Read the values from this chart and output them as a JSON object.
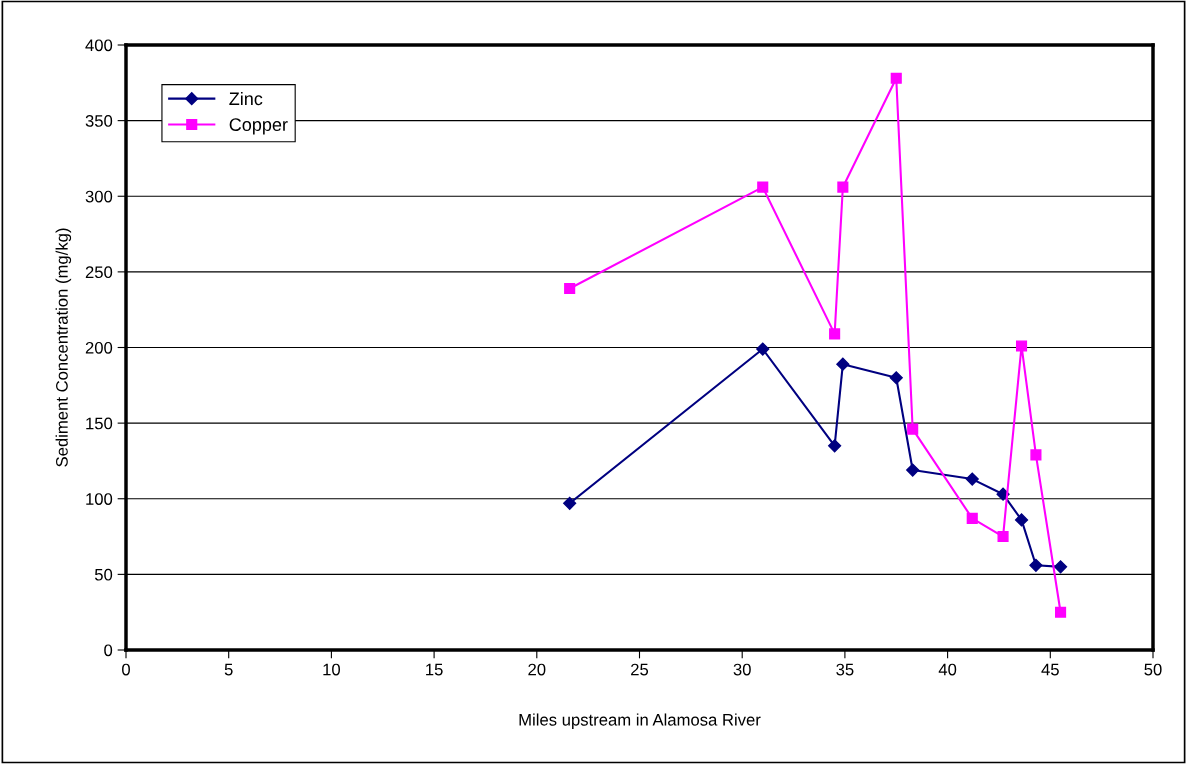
{
  "chart_data": {
    "type": "line",
    "xlabel": "Miles upstream in Alamosa River",
    "ylabel": "Sediment Concentration (mg/kg)",
    "xlim": [
      0,
      50
    ],
    "xticks": [
      0,
      5,
      10,
      15,
      20,
      25,
      30,
      35,
      40,
      45,
      50
    ],
    "ylim": [
      0,
      400
    ],
    "yticks": [
      0,
      50,
      100,
      150,
      200,
      250,
      300,
      350,
      400
    ],
    "grid": "y",
    "legend": "top left",
    "line_style": "solid",
    "x": [
      21.6,
      31.0,
      34.5,
      34.9,
      37.5,
      38.3,
      41.2,
      42.7,
      43.6,
      44.3,
      45.5
    ],
    "series": [
      {
        "name": "Zinc",
        "color": "#000080",
        "marker": "diamond",
        "values": [
          97,
          199,
          135,
          189,
          180,
          119,
          113,
          103,
          86,
          56,
          55
        ]
      },
      {
        "name": "Copper",
        "color": "#ff00ff",
        "marker": "square",
        "values": [
          239,
          306,
          209,
          306,
          378,
          146,
          87,
          75,
          201,
          129,
          25
        ]
      }
    ]
  }
}
